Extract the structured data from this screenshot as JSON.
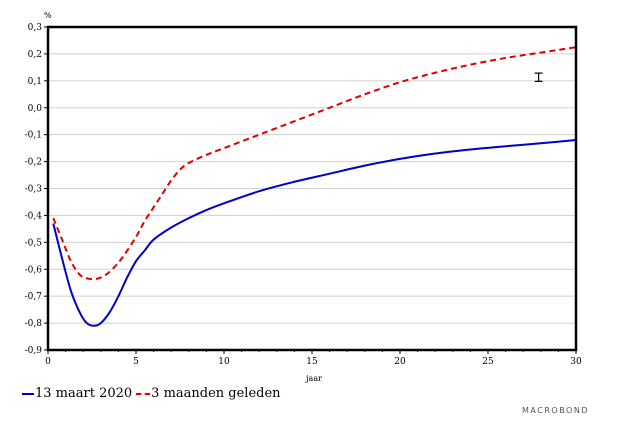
{
  "chart_data": {
    "type": "line",
    "ylabel": "%",
    "xlabel": "jaar",
    "xlim": [
      0,
      30
    ],
    "ylim": [
      -0.9,
      0.3
    ],
    "x_ticks": [
      "0",
      "5",
      "10",
      "15",
      "20",
      "25",
      "30"
    ],
    "y_ticks": [
      "0,3",
      "0,2",
      "0,1",
      "0,0",
      "-0,1",
      "-0,2",
      "-0,3",
      "-0,4",
      "-0,5",
      "-0,6",
      "-0,7",
      "-0,8",
      "-0,9"
    ],
    "grid": true,
    "series": [
      {
        "name": "13 maart 2020",
        "color": "#0000c8",
        "style": "solid",
        "x": [
          0.3,
          0.8,
          1.3,
          1.8,
          2.2,
          2.6,
          3.0,
          3.5,
          4.0,
          4.5,
          5.0,
          5.5,
          6.0,
          7.0,
          8.0,
          9.0,
          10.0,
          12.0,
          14.0,
          16.0,
          18.0,
          20.0,
          22.0,
          24.0,
          26.0,
          28.0,
          30.0
        ],
        "values": [
          -0.43,
          -0.56,
          -0.68,
          -0.76,
          -0.8,
          -0.81,
          -0.8,
          -0.76,
          -0.7,
          -0.63,
          -0.57,
          -0.53,
          -0.49,
          -0.445,
          -0.41,
          -0.38,
          -0.355,
          -0.31,
          -0.275,
          -0.245,
          -0.215,
          -0.19,
          -0.17,
          -0.155,
          -0.143,
          -0.132,
          -0.12
        ]
      },
      {
        "name": "3 maanden geleden",
        "color": "#e00000",
        "style": "dashed",
        "x": [
          0.3,
          0.8,
          1.3,
          1.8,
          2.3,
          2.8,
          3.3,
          3.8,
          4.3,
          5.0,
          5.5,
          6.0,
          6.5,
          7.0,
          7.5,
          8.0,
          9.0,
          10.0,
          12.0,
          14.0,
          16.0,
          18.0,
          20.0,
          22.0,
          24.0,
          26.0,
          28.0,
          30.0
        ],
        "values": [
          -0.41,
          -0.49,
          -0.57,
          -0.62,
          -0.635,
          -0.635,
          -0.62,
          -0.59,
          -0.55,
          -0.48,
          -0.42,
          -0.37,
          -0.32,
          -0.27,
          -0.23,
          -0.205,
          -0.175,
          -0.15,
          -0.1,
          -0.05,
          0.0,
          0.05,
          0.095,
          0.13,
          0.16,
          0.185,
          0.205,
          0.225
        ]
      }
    ]
  },
  "legend": {
    "series_1": "13 maart 2020",
    "series_2": "3 maanden geleden"
  },
  "brand": "MACROBOND"
}
